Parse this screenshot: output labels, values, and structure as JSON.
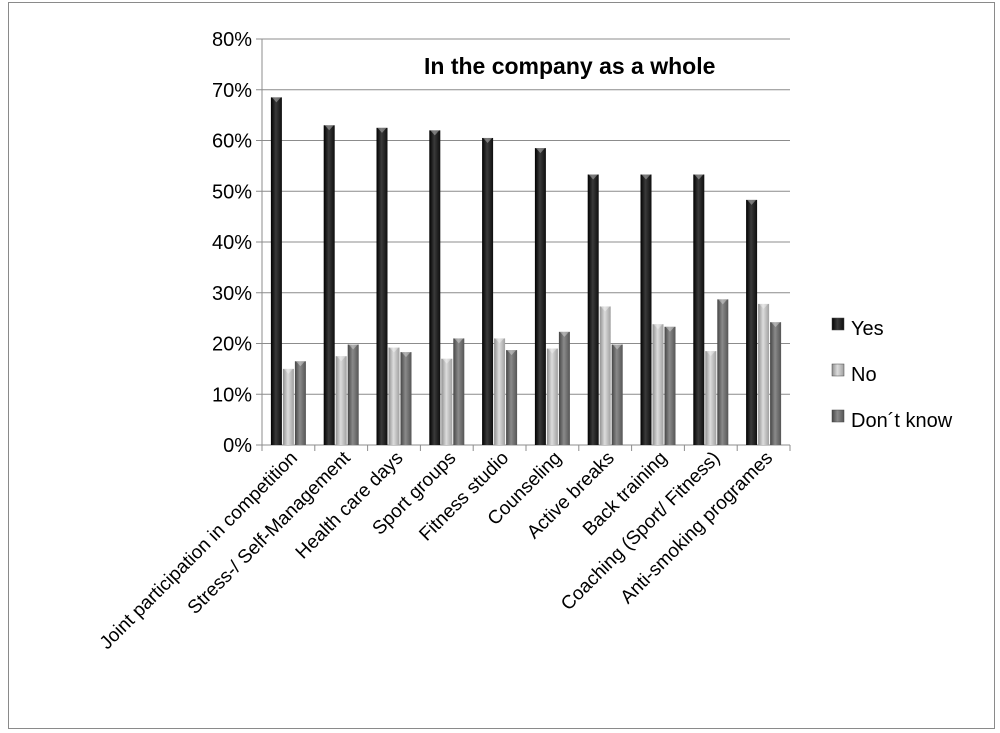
{
  "chart_data": {
    "type": "bar",
    "title": "In the company as a whole",
    "xlabel": "",
    "ylabel": "",
    "ylim": [
      0,
      0.8
    ],
    "y_ticks": [
      {
        "value": 0,
        "label": "0%"
      },
      {
        "value": 0.1,
        "label": "10%"
      },
      {
        "value": 0.2,
        "label": "20%"
      },
      {
        "value": 0.3,
        "label": "30%"
      },
      {
        "value": 0.4,
        "label": "40%"
      },
      {
        "value": 0.5,
        "label": "50%"
      },
      {
        "value": 0.6,
        "label": "60%"
      },
      {
        "value": 0.7,
        "label": "70%"
      },
      {
        "value": 0.8,
        "label": "80%"
      }
    ],
    "grid": true,
    "legend_position": "right",
    "categories": [
      "Joint participation in competition",
      "Stress-/ Self-Management",
      "Health care days",
      "Sport groups",
      "Fitness studio",
      "Counseling",
      "Active breaks",
      "Back training",
      "Coaching (Sport/ Fitness)",
      "Anti-smoking programes"
    ],
    "series": [
      {
        "name": "Yes",
        "color": "#1f1f1f",
        "values": [
          0.685,
          0.63,
          0.625,
          0.62,
          0.605,
          0.585,
          0.533,
          0.533,
          0.533,
          0.483
        ]
      },
      {
        "name": "No",
        "color": "#b0b0b0",
        "values": [
          0.15,
          0.175,
          0.192,
          0.17,
          0.21,
          0.19,
          0.273,
          0.238,
          0.185,
          0.278
        ]
      },
      {
        "name": "Don´t know",
        "color": "#6b6b6b",
        "values": [
          0.165,
          0.198,
          0.183,
          0.21,
          0.187,
          0.223,
          0.198,
          0.233,
          0.287,
          0.242
        ]
      }
    ]
  }
}
